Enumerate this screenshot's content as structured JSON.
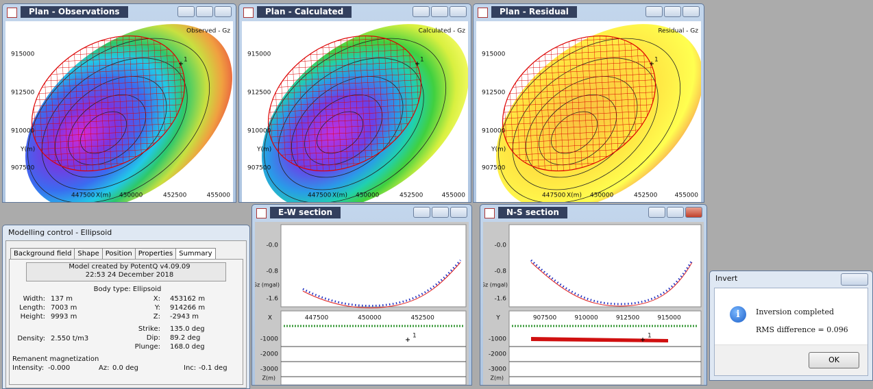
{
  "plan_windows": [
    {
      "title": "Plan - Observations",
      "map_label": "Observed - Gz"
    },
    {
      "title": "Plan - Calculated",
      "map_label": "Calculated - Gz"
    },
    {
      "title": "Plan - Residual",
      "map_label": "Residual - Gz"
    }
  ],
  "plan_axes": {
    "y_ticks": [
      "915000",
      "912500",
      "910000",
      "907500"
    ],
    "y_label": "Y(m)",
    "x_ticks": [
      "447500",
      "450000",
      "452500",
      "455000"
    ],
    "x_label": "X(m)",
    "marker": "1"
  },
  "sections": [
    {
      "title": "E-W section",
      "gz_ticks": [
        "-0.0",
        "-0.8",
        "-1.6"
      ],
      "gz_label": "Gz (mgal)",
      "axis_label": "X",
      "pos_ticks": [
        "447500",
        "450000",
        "452500"
      ],
      "depth_ticks": [
        "-1000",
        "-2000",
        "-3000"
      ],
      "z_label": "Z(m)",
      "marker": "1"
    },
    {
      "title": "N-S section",
      "gz_ticks": [
        "-0.0",
        "-0.8",
        "-1.6"
      ],
      "gz_label": "Gz (mgal)",
      "axis_label": "Y",
      "pos_ticks": [
        "907500",
        "910000",
        "912500",
        "915000"
      ],
      "depth_ticks": [
        "-1000",
        "-2000",
        "-3000"
      ],
      "z_label": "Z(m)",
      "marker": "1"
    }
  ],
  "modelling_control": {
    "title": "Modelling control - Ellipsoid",
    "tabs": [
      "Background field",
      "Shape",
      "Position",
      "Properties",
      "Summary"
    ],
    "credit": [
      "Model created by PotentQ v4.09.09",
      "22:53  24 December 2018"
    ],
    "body_type": "Body type: Ellipsoid",
    "shape": [
      {
        "label": "Width:",
        "value": "137 m"
      },
      {
        "label": "Length:",
        "value": "7003 m"
      },
      {
        "label": "Height:",
        "value": "9993 m"
      }
    ],
    "position": [
      {
        "label": "X:",
        "value": "453162 m"
      },
      {
        "label": "Y:",
        "value": "914266 m"
      },
      {
        "label": "Z:",
        "value": "-2943 m"
      }
    ],
    "density": {
      "label": "Density:",
      "value": "2.550 t/m3"
    },
    "orientation": [
      {
        "label": "Strike:",
        "value": "135.0 deg"
      },
      {
        "label": "Dip:",
        "value": "89.2 deg"
      },
      {
        "label": "Plunge:",
        "value": "168.0 deg"
      }
    ],
    "remanence_title": "Remanent magnetization",
    "remanence": [
      {
        "label": "Intensity:",
        "value": "-0.000"
      },
      {
        "label": "Az:",
        "value": "0.0 deg"
      },
      {
        "label": "Inc:",
        "value": "-0.1 deg"
      }
    ]
  },
  "invert": {
    "title": "Invert",
    "message": "Inversion completed",
    "rms": "RMS difference = 0.096",
    "button": "OK"
  }
}
